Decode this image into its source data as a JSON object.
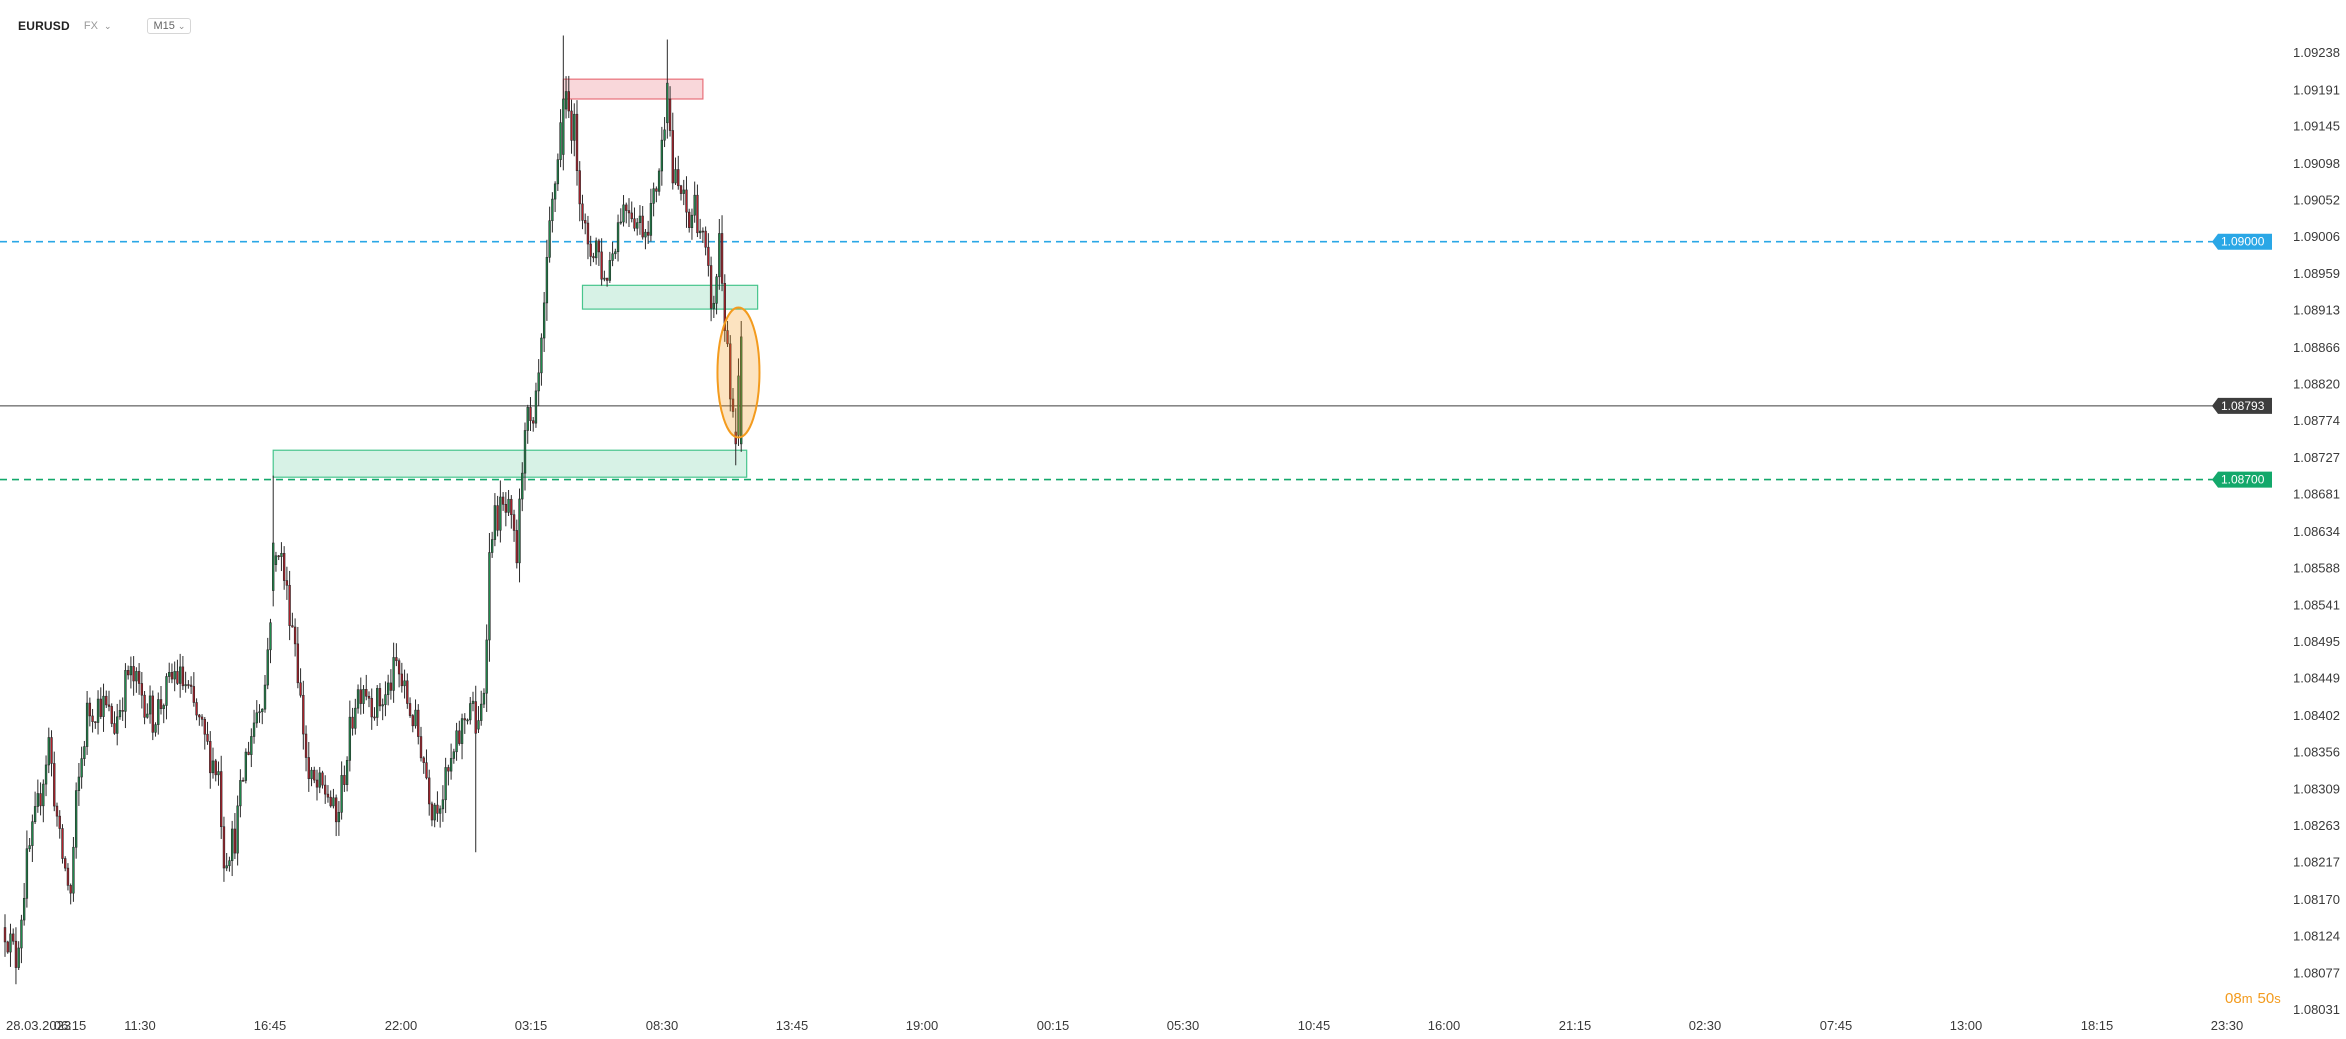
{
  "header": {
    "symbol": "EURUSD",
    "feed": "FX",
    "timeframe": "M15"
  },
  "countdown": {
    "minutes": "08",
    "m_unit": "m",
    "seconds": "50",
    "s_unit": "s"
  },
  "colors": {
    "bull": "#1f8a4c",
    "bear": "#b3202a",
    "line_0900": "#2aa7e6",
    "line_0870": "#13a86b",
    "current_price": "#3d3d3d",
    "resistance_zone": "#e8707a",
    "support_zone": "#47c58d",
    "highlight": "#f39b1e"
  },
  "chart_data": {
    "type": "candlestick",
    "timeframe": "M15",
    "instrument": "EURUSD",
    "ylim": [
      1.08031,
      1.09238
    ],
    "y_ticks": [
      "1.09238",
      "1.09191",
      "1.09145",
      "1.09098",
      "1.09052",
      "1.09006",
      "1.08959",
      "1.08913",
      "1.08866",
      "1.08820",
      "1.08774",
      "1.08727",
      "1.08681",
      "1.08634",
      "1.08588",
      "1.08541",
      "1.08495",
      "1.08449",
      "1.08402",
      "1.08356",
      "1.08309",
      "1.08263",
      "1.08217",
      "1.08170",
      "1.08124",
      "1.08077",
      "1.08031"
    ],
    "x_ticks": [
      "28.03.2023",
      "06:15",
      "11:30",
      "16:45",
      "22:00",
      "03:15",
      "08:30",
      "13:45",
      "19:00",
      "00:15",
      "05:30",
      "10:45",
      "16:00",
      "21:15",
      "02:30",
      "07:45",
      "13:00",
      "18:15",
      "23:30"
    ],
    "current_price": {
      "label": "1.08793",
      "value": 1.08793
    },
    "horizontal_levels": [
      {
        "label": "1.09000",
        "value": 1.09,
        "style": "dashed",
        "color": "#2aa7e6"
      },
      {
        "label": "1.08700",
        "value": 1.087,
        "style": "dashed",
        "color": "#13a86b"
      }
    ],
    "zones": [
      {
        "kind": "resistance",
        "x_start": 1.0,
        "x_end": 1.32,
        "y_low": 1.0918,
        "y_high": 1.09205
      },
      {
        "kind": "support",
        "x_start": 1.0,
        "x_end": 1.4,
        "y_low": 1.08915,
        "y_high": 1.08945
      },
      {
        "kind": "support",
        "x_start": 0.0,
        "x_end": 1.4,
        "y_low": 1.08703,
        "y_high": 1.08737
      }
    ],
    "highlight": {
      "kind": "ellipse",
      "center_x": 1.068,
      "center_y": 1.08835,
      "note": ""
    },
    "candle_count": 310,
    "candles": []
  }
}
